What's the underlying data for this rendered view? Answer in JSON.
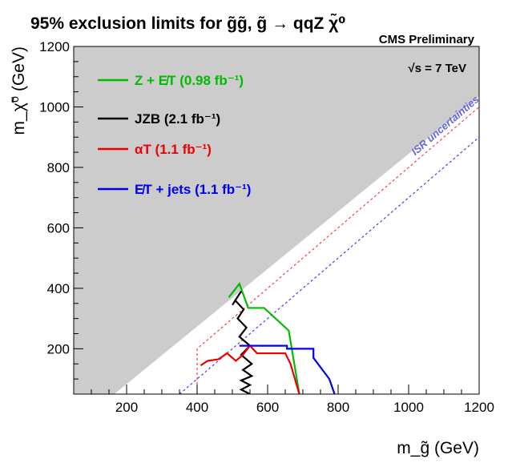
{
  "chart_data": {
    "type": "line",
    "title": "95% exclusion limits for g̃g̃, g̃ → qqZ χ̃⁰",
    "subtitle": "CMS Preliminary",
    "energy_label": "√s = 7 TeV",
    "xlabel": "m_g̃ (GeV)",
    "ylabel": "m_χ̃⁰ (GeV)",
    "xlim": [
      50,
      1200
    ],
    "ylim": [
      50,
      1200
    ],
    "x_ticks": [
      200,
      400,
      600,
      800,
      1000,
      1200
    ],
    "y_ticks": [
      200,
      400,
      600,
      800,
      1000,
      1200
    ],
    "x_tick_labels": [
      "200",
      "400",
      "600",
      "800",
      "1000",
      "1200"
    ],
    "y_tick_labels": [
      "200",
      "400",
      "600",
      "800",
      "1000",
      "1200"
    ],
    "excluded_region_color": "#cccccc",
    "isr_label": "ISR uncertainties",
    "isr_bands": [
      {
        "color": "#ee4444",
        "x": [
          400,
          400,
          1200
        ],
        "y": [
          50,
          200,
          1000
        ]
      },
      {
        "color": "#4444dd",
        "x": [
          350,
          1200
        ],
        "y": [
          50,
          900
        ]
      }
    ],
    "series": [
      {
        "name": "Z + E̸T",
        "lumi": "0.98 fb⁻¹",
        "color": "#00bb00",
        "x": [
          490,
          520,
          545,
          590,
          660,
          690
        ],
        "y": [
          370,
          415,
          335,
          335,
          260,
          50
        ]
      },
      {
        "name": "JZB",
        "lumi": "2.1 fb⁻¹",
        "color": "#000000",
        "x": [
          500,
          525,
          508,
          532,
          515,
          540,
          520,
          550,
          525,
          555,
          530,
          555,
          525,
          550,
          525,
          550
        ],
        "y": [
          345,
          390,
          360,
          330,
          300,
          270,
          240,
          210,
          180,
          150,
          130,
          110,
          95,
          80,
          65,
          50
        ]
      },
      {
        "name": "αT",
        "lumi": "1.1 fb⁻¹",
        "color": "#ee0000",
        "x": [
          410,
          430,
          460,
          485,
          510,
          530,
          550,
          570,
          595,
          620,
          650,
          665,
          690
        ],
        "y": [
          145,
          160,
          165,
          185,
          160,
          180,
          210,
          185,
          185,
          185,
          185,
          150,
          50
        ]
      },
      {
        "name": "E̸T + jets",
        "lumi": "1.1 fb⁻¹",
        "color": "#0000ee",
        "x": [
          520,
          655,
          655,
          730,
          730,
          775,
          790
        ],
        "y": [
          210,
          210,
          200,
          200,
          170,
          100,
          50
        ]
      }
    ]
  }
}
